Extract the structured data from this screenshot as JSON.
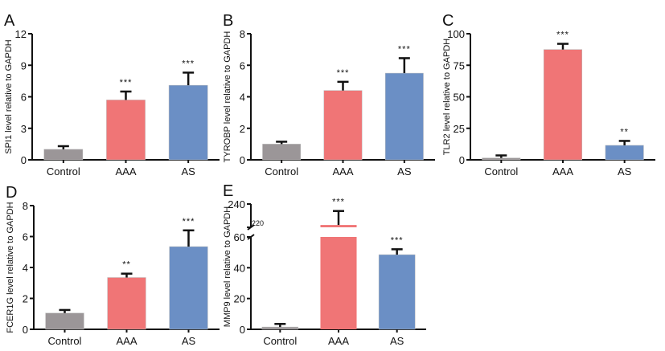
{
  "chart_data": [
    {
      "type": "bar",
      "panel": "A",
      "ylabel": "SPI1 level relative to GAPDH",
      "categories": [
        "Control",
        "AAA",
        "AS"
      ],
      "values": [
        1.0,
        5.7,
        7.1
      ],
      "errors": [
        0.3,
        0.8,
        1.2
      ],
      "significance": [
        "",
        "***",
        "***"
      ],
      "ylim": [
        0,
        12
      ],
      "yticks": [
        0,
        3,
        6,
        9,
        12
      ]
    },
    {
      "type": "bar",
      "panel": "B",
      "ylabel": "TYROBP level relative to GAPDH",
      "categories": [
        "Control",
        "AAA",
        "AS"
      ],
      "values": [
        1.0,
        4.4,
        5.5
      ],
      "errors": [
        0.15,
        0.55,
        0.95
      ],
      "significance": [
        "",
        "***",
        "***"
      ],
      "ylim": [
        0,
        8
      ],
      "yticks": [
        0,
        2,
        4,
        6,
        8
      ]
    },
    {
      "type": "bar",
      "panel": "C",
      "ylabel": "TLR2 level relative to GAPDH",
      "categories": [
        "Control",
        "AAA",
        "AS"
      ],
      "values": [
        1.5,
        87.5,
        11.5
      ],
      "errors": [
        2.0,
        4.5,
        3.5
      ],
      "significance": [
        "",
        "***",
        "**"
      ],
      "ylim": [
        0,
        100
      ],
      "yticks": [
        0,
        25,
        50,
        75,
        100
      ]
    },
    {
      "type": "bar",
      "panel": "D",
      "ylabel": "FCER1G level relative to GAPDH",
      "categories": [
        "Control",
        "AAA",
        "AS"
      ],
      "values": [
        1.05,
        3.35,
        5.35
      ],
      "errors": [
        0.2,
        0.25,
        1.05
      ],
      "significance": [
        "",
        "**",
        "***"
      ],
      "ylim": [
        0,
        8
      ],
      "yticks": [
        0,
        2,
        4,
        6,
        8
      ]
    },
    {
      "type": "bar",
      "panel": "E",
      "ylabel": "MMP9 level relative to GAPDH",
      "categories": [
        "Control",
        "AAA",
        "AS"
      ],
      "values": [
        1.5,
        222,
        48.5
      ],
      "errors": [
        2.0,
        12,
        3.5
      ],
      "significance": [
        "",
        "***",
        "***"
      ],
      "ylim": [
        0,
        240
      ],
      "axis_break": [
        60,
        220
      ],
      "yticks": [
        0,
        20,
        40,
        60,
        220,
        240
      ]
    }
  ],
  "colors": {
    "Control": "#9b9698",
    "AAA": "#f07576",
    "AS": "#6b8fc5"
  }
}
